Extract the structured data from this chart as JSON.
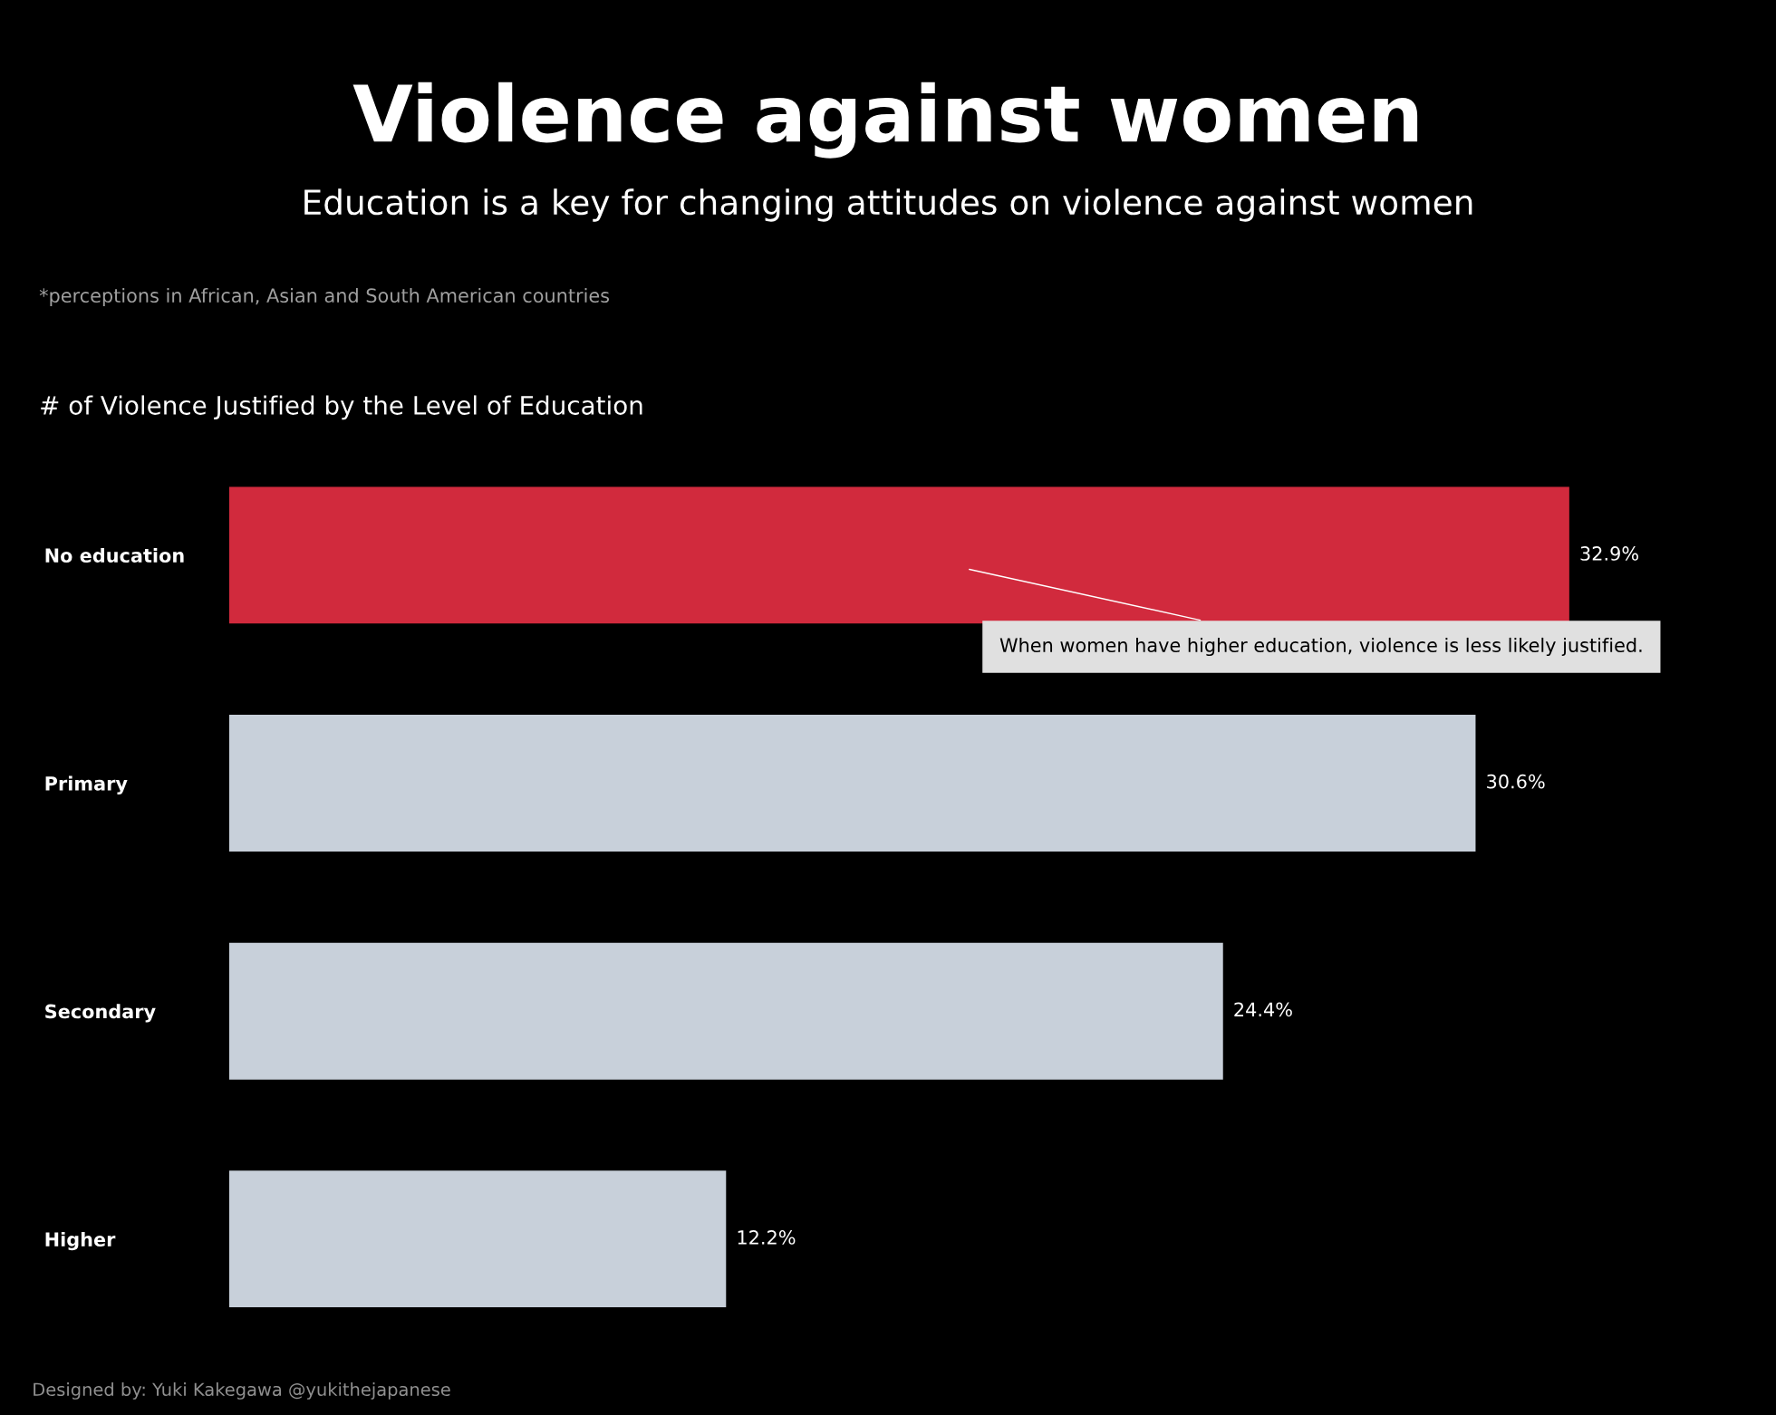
{
  "chart_data": {
    "type": "bar",
    "orientation": "horizontal",
    "title": "Violence against women",
    "subtitle": "Education is a key for changing attitudes on violence against women",
    "categories": [
      "No education",
      "Primary",
      "Secondary",
      "Higher"
    ],
    "values": [
      32.9,
      30.6,
      24.4,
      12.2
    ],
    "colors": [
      "#d12a3d",
      "#c8d0da",
      "#c8d0da",
      "#c8d0da"
    ],
    "value_labels": [
      "32.9%",
      "30.6%",
      "24.4%",
      "12.2%"
    ],
    "grid": false,
    "legend": false,
    "annotations": [
      "*perceptions in African, Asian and South American countries",
      "# of Violence Justified by the Level of Education",
      "When women have higher education, violence is less likely justified.",
      "Designed by: Yuki Kakegawa @yukithejapanese"
    ]
  }
}
